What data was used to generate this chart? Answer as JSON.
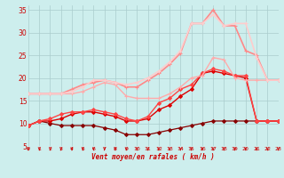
{
  "xlabel": "Vent moyen/en rafales ( km/h )",
  "xlim": [
    0,
    23
  ],
  "ylim": [
    5,
    36
  ],
  "yticks": [
    5,
    10,
    15,
    20,
    25,
    30,
    35
  ],
  "xticks": [
    0,
    1,
    2,
    3,
    4,
    5,
    6,
    7,
    8,
    9,
    10,
    11,
    12,
    13,
    14,
    15,
    16,
    17,
    18,
    19,
    20,
    21,
    22,
    23
  ],
  "bg_color": "#cdeeed",
  "grid_color": "#aacccc",
  "lines": [
    {
      "x": [
        0,
        1,
        2,
        3,
        4,
        5,
        6,
        7,
        8,
        9,
        10,
        11,
        12,
        13,
        14,
        15,
        16,
        17,
        18,
        19,
        20,
        21,
        22,
        23
      ],
      "y": [
        9.5,
        10.5,
        10.0,
        9.5,
        9.5,
        9.5,
        9.5,
        9.0,
        8.5,
        7.5,
        7.5,
        7.5,
        8.0,
        8.5,
        9.0,
        9.5,
        10.0,
        10.5,
        10.5,
        10.5,
        10.5,
        10.5,
        10.5,
        10.5
      ],
      "color": "#880000",
      "lw": 0.9,
      "marker": "D",
      "ms": 2.0
    },
    {
      "x": [
        0,
        1,
        2,
        3,
        4,
        5,
        6,
        7,
        8,
        9,
        10,
        11,
        12,
        13,
        14,
        15,
        16,
        17,
        18,
        19,
        20,
        21,
        22,
        23
      ],
      "y": [
        9.5,
        10.5,
        10.5,
        11.0,
        12.0,
        12.5,
        12.5,
        12.0,
        11.5,
        10.5,
        10.5,
        11.0,
        13.0,
        14.0,
        16.0,
        17.5,
        21.0,
        21.5,
        21.0,
        20.5,
        20.0,
        10.5,
        10.5,
        10.5
      ],
      "color": "#dd0000",
      "lw": 1.0,
      "marker": "D",
      "ms": 2.0
    },
    {
      "x": [
        0,
        1,
        2,
        3,
        4,
        5,
        6,
        7,
        8,
        9,
        10,
        11,
        12,
        13,
        14,
        15,
        16,
        17,
        18,
        19,
        20,
        21,
        22,
        23
      ],
      "y": [
        9.5,
        10.5,
        11.0,
        12.0,
        12.5,
        12.5,
        13.0,
        12.5,
        12.0,
        11.0,
        10.5,
        11.5,
        14.5,
        15.5,
        17.5,
        18.5,
        21.0,
        22.0,
        21.5,
        20.5,
        20.5,
        10.5,
        10.5,
        10.5
      ],
      "color": "#ff4444",
      "lw": 1.0,
      "marker": "D",
      "ms": 2.0
    },
    {
      "x": [
        0,
        1,
        2,
        3,
        4,
        5,
        6,
        7,
        8,
        9,
        10,
        11,
        12,
        13,
        14,
        15,
        16,
        17,
        18,
        19,
        20,
        21,
        22,
        23
      ],
      "y": [
        16.5,
        16.5,
        16.5,
        16.5,
        16.5,
        17.0,
        18.0,
        19.0,
        18.5,
        16.0,
        15.5,
        15.5,
        15.5,
        16.5,
        18.0,
        20.0,
        20.5,
        24.5,
        24.0,
        20.0,
        19.5,
        19.5,
        19.5,
        19.5
      ],
      "color": "#ffaaaa",
      "lw": 1.0,
      "marker": "+",
      "ms": 3.5
    },
    {
      "x": [
        0,
        1,
        2,
        3,
        4,
        5,
        6,
        7,
        8,
        9,
        10,
        11,
        12,
        13,
        14,
        15,
        16,
        17,
        18,
        19,
        20,
        21,
        22,
        23
      ],
      "y": [
        16.5,
        16.5,
        16.5,
        16.5,
        17.5,
        18.5,
        19.0,
        19.5,
        19.0,
        18.0,
        18.0,
        19.5,
        21.0,
        23.0,
        25.5,
        32.0,
        32.0,
        35.0,
        31.5,
        31.5,
        26.0,
        25.0,
        19.5,
        19.5
      ],
      "color": "#ff8888",
      "lw": 1.2,
      "marker": "+",
      "ms": 3.5
    },
    {
      "x": [
        0,
        1,
        2,
        3,
        4,
        5,
        6,
        7,
        8,
        9,
        10,
        11,
        12,
        13,
        14,
        15,
        16,
        17,
        18,
        19,
        20,
        21,
        22,
        23
      ],
      "y": [
        16.5,
        16.5,
        16.5,
        16.5,
        17.0,
        18.0,
        19.5,
        19.5,
        19.0,
        18.5,
        19.0,
        20.0,
        21.5,
        23.5,
        26.0,
        32.0,
        32.0,
        34.0,
        31.5,
        32.0,
        32.0,
        24.5,
        19.5,
        19.5
      ],
      "color": "#ffcccc",
      "lw": 1.2,
      "marker": "+",
      "ms": 3.5
    }
  ],
  "arrow_color": "#cc0000"
}
